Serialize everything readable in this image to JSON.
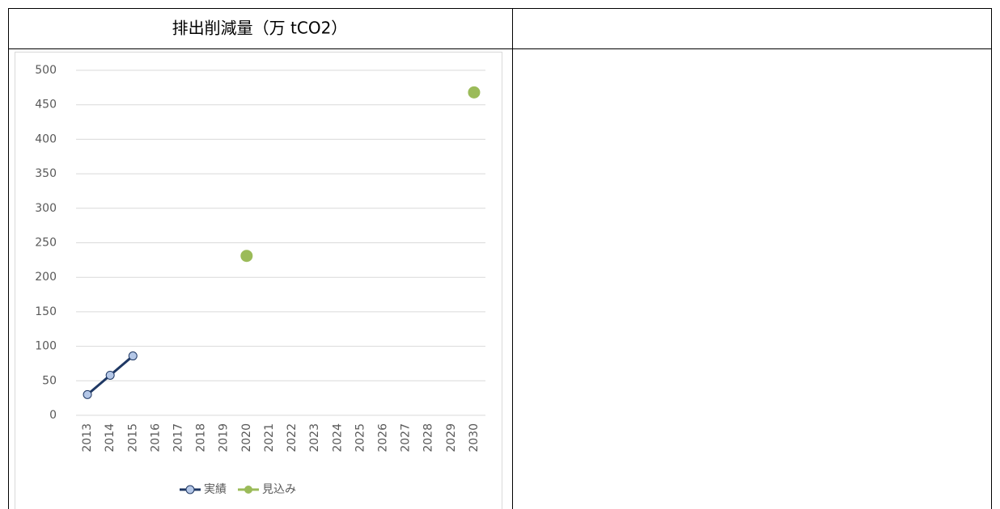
{
  "chart_data": {
    "type": "line",
    "title": "排出削減量（万 tCO2）",
    "categories": [
      "2013",
      "2014",
      "2015",
      "2016",
      "2017",
      "2018",
      "2019",
      "2020",
      "2021",
      "2022",
      "2023",
      "2024",
      "2025",
      "2026",
      "2027",
      "2028",
      "2029",
      "2030"
    ],
    "series": [
      {
        "name": "実績",
        "color": "#1f3864",
        "marker_fill": "#b4c7e7",
        "style": "line",
        "values": [
          30,
          58,
          86,
          null,
          null,
          null,
          null,
          null,
          null,
          null,
          null,
          null,
          null,
          null,
          null,
          null,
          null,
          null
        ]
      },
      {
        "name": "見込み",
        "color": "#9bbb59",
        "marker_fill": "#9bbb59",
        "style": "markers",
        "values": [
          null,
          null,
          null,
          null,
          null,
          null,
          null,
          231,
          null,
          null,
          null,
          null,
          null,
          null,
          null,
          null,
          null,
          468
        ]
      }
    ],
    "ylim": [
      0,
      500
    ],
    "yticks": [
      0,
      50,
      100,
      150,
      200,
      250,
      300,
      350,
      400,
      450,
      500
    ],
    "grid": true,
    "legend": "bottom"
  }
}
